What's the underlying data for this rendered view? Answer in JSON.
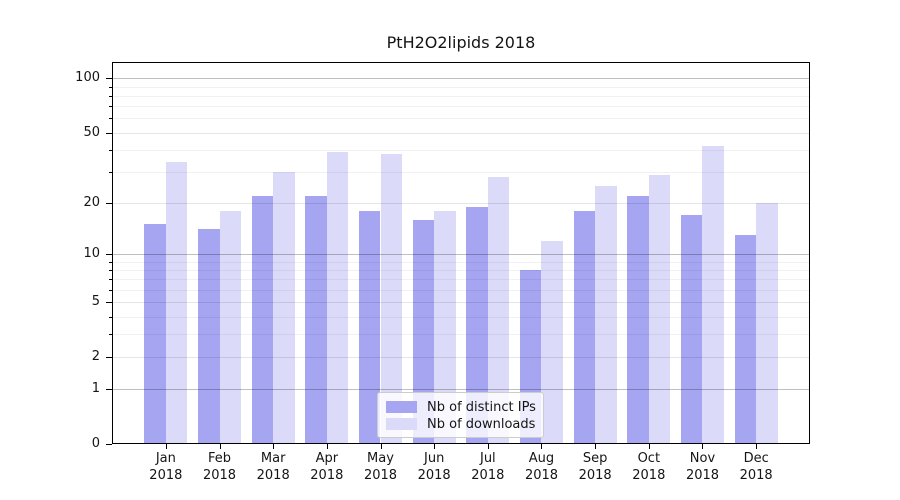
{
  "title": "PtH2O2lipids 2018",
  "chart_data": {
    "type": "bar",
    "title": "PtH2O2lipids 2018",
    "categories": [
      "Jan",
      "Feb",
      "Mar",
      "Apr",
      "May",
      "Jun",
      "Jul",
      "Aug",
      "Sep",
      "Oct",
      "Nov",
      "Dec"
    ],
    "category_year": "2018",
    "series": [
      {
        "name": "Nb of distinct IPs",
        "color": "#a5a5f2",
        "values": [
          15,
          14,
          22,
          22,
          18,
          16,
          19,
          8,
          18,
          22,
          17,
          13
        ]
      },
      {
        "name": "Nb of downloads",
        "color": "#dbdbf9",
        "values": [
          34,
          18,
          30,
          39,
          38,
          18,
          28,
          12,
          25,
          29,
          42,
          20
        ]
      }
    ],
    "y_axis": {
      "scale": "log10(1+value)",
      "tick_labels": [
        "100",
        "50",
        "20",
        "10",
        "5",
        "2",
        "1",
        "0"
      ],
      "tick_values": [
        100,
        50,
        20,
        10,
        5,
        2,
        1,
        0
      ],
      "strong_grid_values": [
        100,
        10,
        1
      ],
      "minor_grid_values": [
        90,
        80,
        70,
        60,
        40,
        30,
        9,
        8,
        7,
        6,
        4,
        3
      ],
      "top_value": 120
    },
    "legend": {
      "position": "lower center",
      "items": [
        "Nb of distinct IPs",
        "Nb of downloads"
      ]
    },
    "grid": true
  },
  "colors": {
    "axis": "#000000",
    "text": "#151515",
    "grid_strong": "rgba(0,0,0,0.25)",
    "grid_light": "rgba(0,0,0,0.10)",
    "grid_minor": "rgba(0,0,0,0.055)",
    "legend_border": "#cccccc",
    "legend_bg": "rgba(255,255,255,0.8)"
  }
}
